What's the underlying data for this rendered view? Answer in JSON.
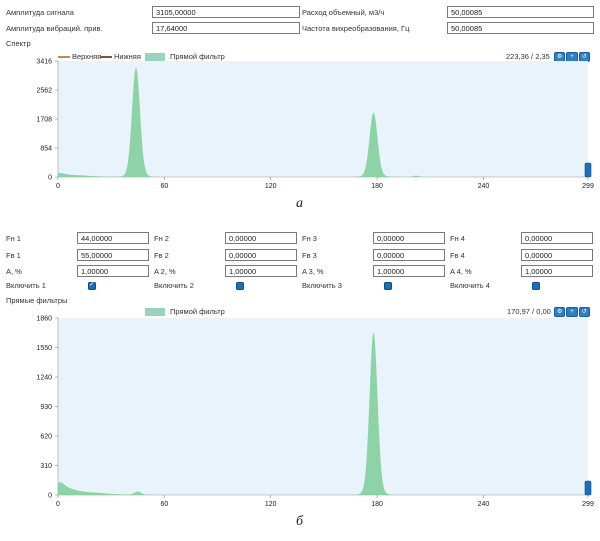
{
  "top_form": {
    "signal_amp_label": "Амплитуда сигнала",
    "signal_amp_value": "3105,00000",
    "vib_amp_label": "Амплитуда вибраций. прив.",
    "vib_amp_value": "17,64000",
    "flow_label": "Расход объемный, м3/ч",
    "flow_value": "50,00085",
    "vortex_label": "Частота вихреобразования, Гц",
    "vortex_value": "50,00085"
  },
  "spectrum": {
    "title": "Спектр",
    "legend_upper": "Верхняя",
    "legend_lower": "Нижняя",
    "legend_filter": "Прямой фильтр",
    "cursor_readout": "223,36 / 2,35",
    "colors": {
      "upper": "#c28a5a",
      "lower": "#8b4f3a",
      "filter": "#97d3bf",
      "fill": "#7ccc97",
      "bg": "#e8f3fb"
    }
  },
  "chart_data": [
    {
      "type": "area",
      "x_ticks": [
        "0",
        "60",
        "120",
        "180",
        "240",
        "299"
      ],
      "y_ticks": [
        "0",
        "854",
        "1708",
        "2562",
        "3416"
      ],
      "xlim": [
        0,
        299
      ],
      "ylim": [
        0,
        3416
      ],
      "peaks": [
        {
          "x": 0.5,
          "y": 70,
          "w": 3
        },
        {
          "x": 5,
          "y": 40,
          "w": 8
        },
        {
          "x": 13,
          "y": 25,
          "w": 10
        },
        {
          "x": 44,
          "y": 3105,
          "w": 2.2
        },
        {
          "x": 44,
          "y": 130,
          "w": 4
        },
        {
          "x": 178,
          "y": 1800,
          "w": 2.2
        },
        {
          "x": 178,
          "y": 100,
          "w": 4
        },
        {
          "x": 202,
          "y": 40,
          "w": 1.5
        }
      ]
    },
    {
      "type": "area",
      "x_ticks": [
        "0",
        "60",
        "120",
        "180",
        "240",
        "299"
      ],
      "y_ticks": [
        "0",
        "310",
        "620",
        "930",
        "1240",
        "1550",
        "1860"
      ],
      "xlim": [
        0,
        299
      ],
      "ylim": [
        0,
        1860
      ],
      "peaks": [
        {
          "x": 0.8,
          "y": 75,
          "w": 2.5
        },
        {
          "x": 4,
          "y": 50,
          "w": 5
        },
        {
          "x": 14,
          "y": 30,
          "w": 12
        },
        {
          "x": 45,
          "y": 35,
          "w": 2
        },
        {
          "x": 178,
          "y": 1640,
          "w": 2.2
        },
        {
          "x": 178,
          "y": 70,
          "w": 4
        }
      ]
    }
  ],
  "caption_a": "а",
  "caption_b": "б",
  "filters": {
    "row1": [
      {
        "label": "Fн 1",
        "value": "44,00000"
      },
      {
        "label": "Fн 2",
        "value": "0,00000"
      },
      {
        "label": "Fн 3",
        "value": "0,00000"
      },
      {
        "label": "Fн 4",
        "value": "0,00000"
      }
    ],
    "row2": [
      {
        "label": "Fв 1",
        "value": "55,00000"
      },
      {
        "label": "Fв 2",
        "value": "0,00000"
      },
      {
        "label": "Fв 3",
        "value": "0,00000"
      },
      {
        "label": "Fв 4",
        "value": "0,00000"
      }
    ],
    "row3": [
      {
        "label": "A, %",
        "value": "1,00000"
      },
      {
        "label": "A 2, %",
        "value": "1,00000"
      },
      {
        "label": "A 3, %",
        "value": "1,00000"
      },
      {
        "label": "A 4, %",
        "value": "1,00000"
      }
    ],
    "enable": [
      {
        "label": "Включить 1",
        "checked": true
      },
      {
        "label": "Включить 2",
        "checked": false
      },
      {
        "label": "Включить 3",
        "checked": false
      },
      {
        "label": "Включить 4",
        "checked": false
      }
    ]
  },
  "direct": {
    "title": "Прямые фильтры",
    "legend_filter": "Прямой фильтр",
    "cursor_readout": "170,97 / 0,00"
  }
}
